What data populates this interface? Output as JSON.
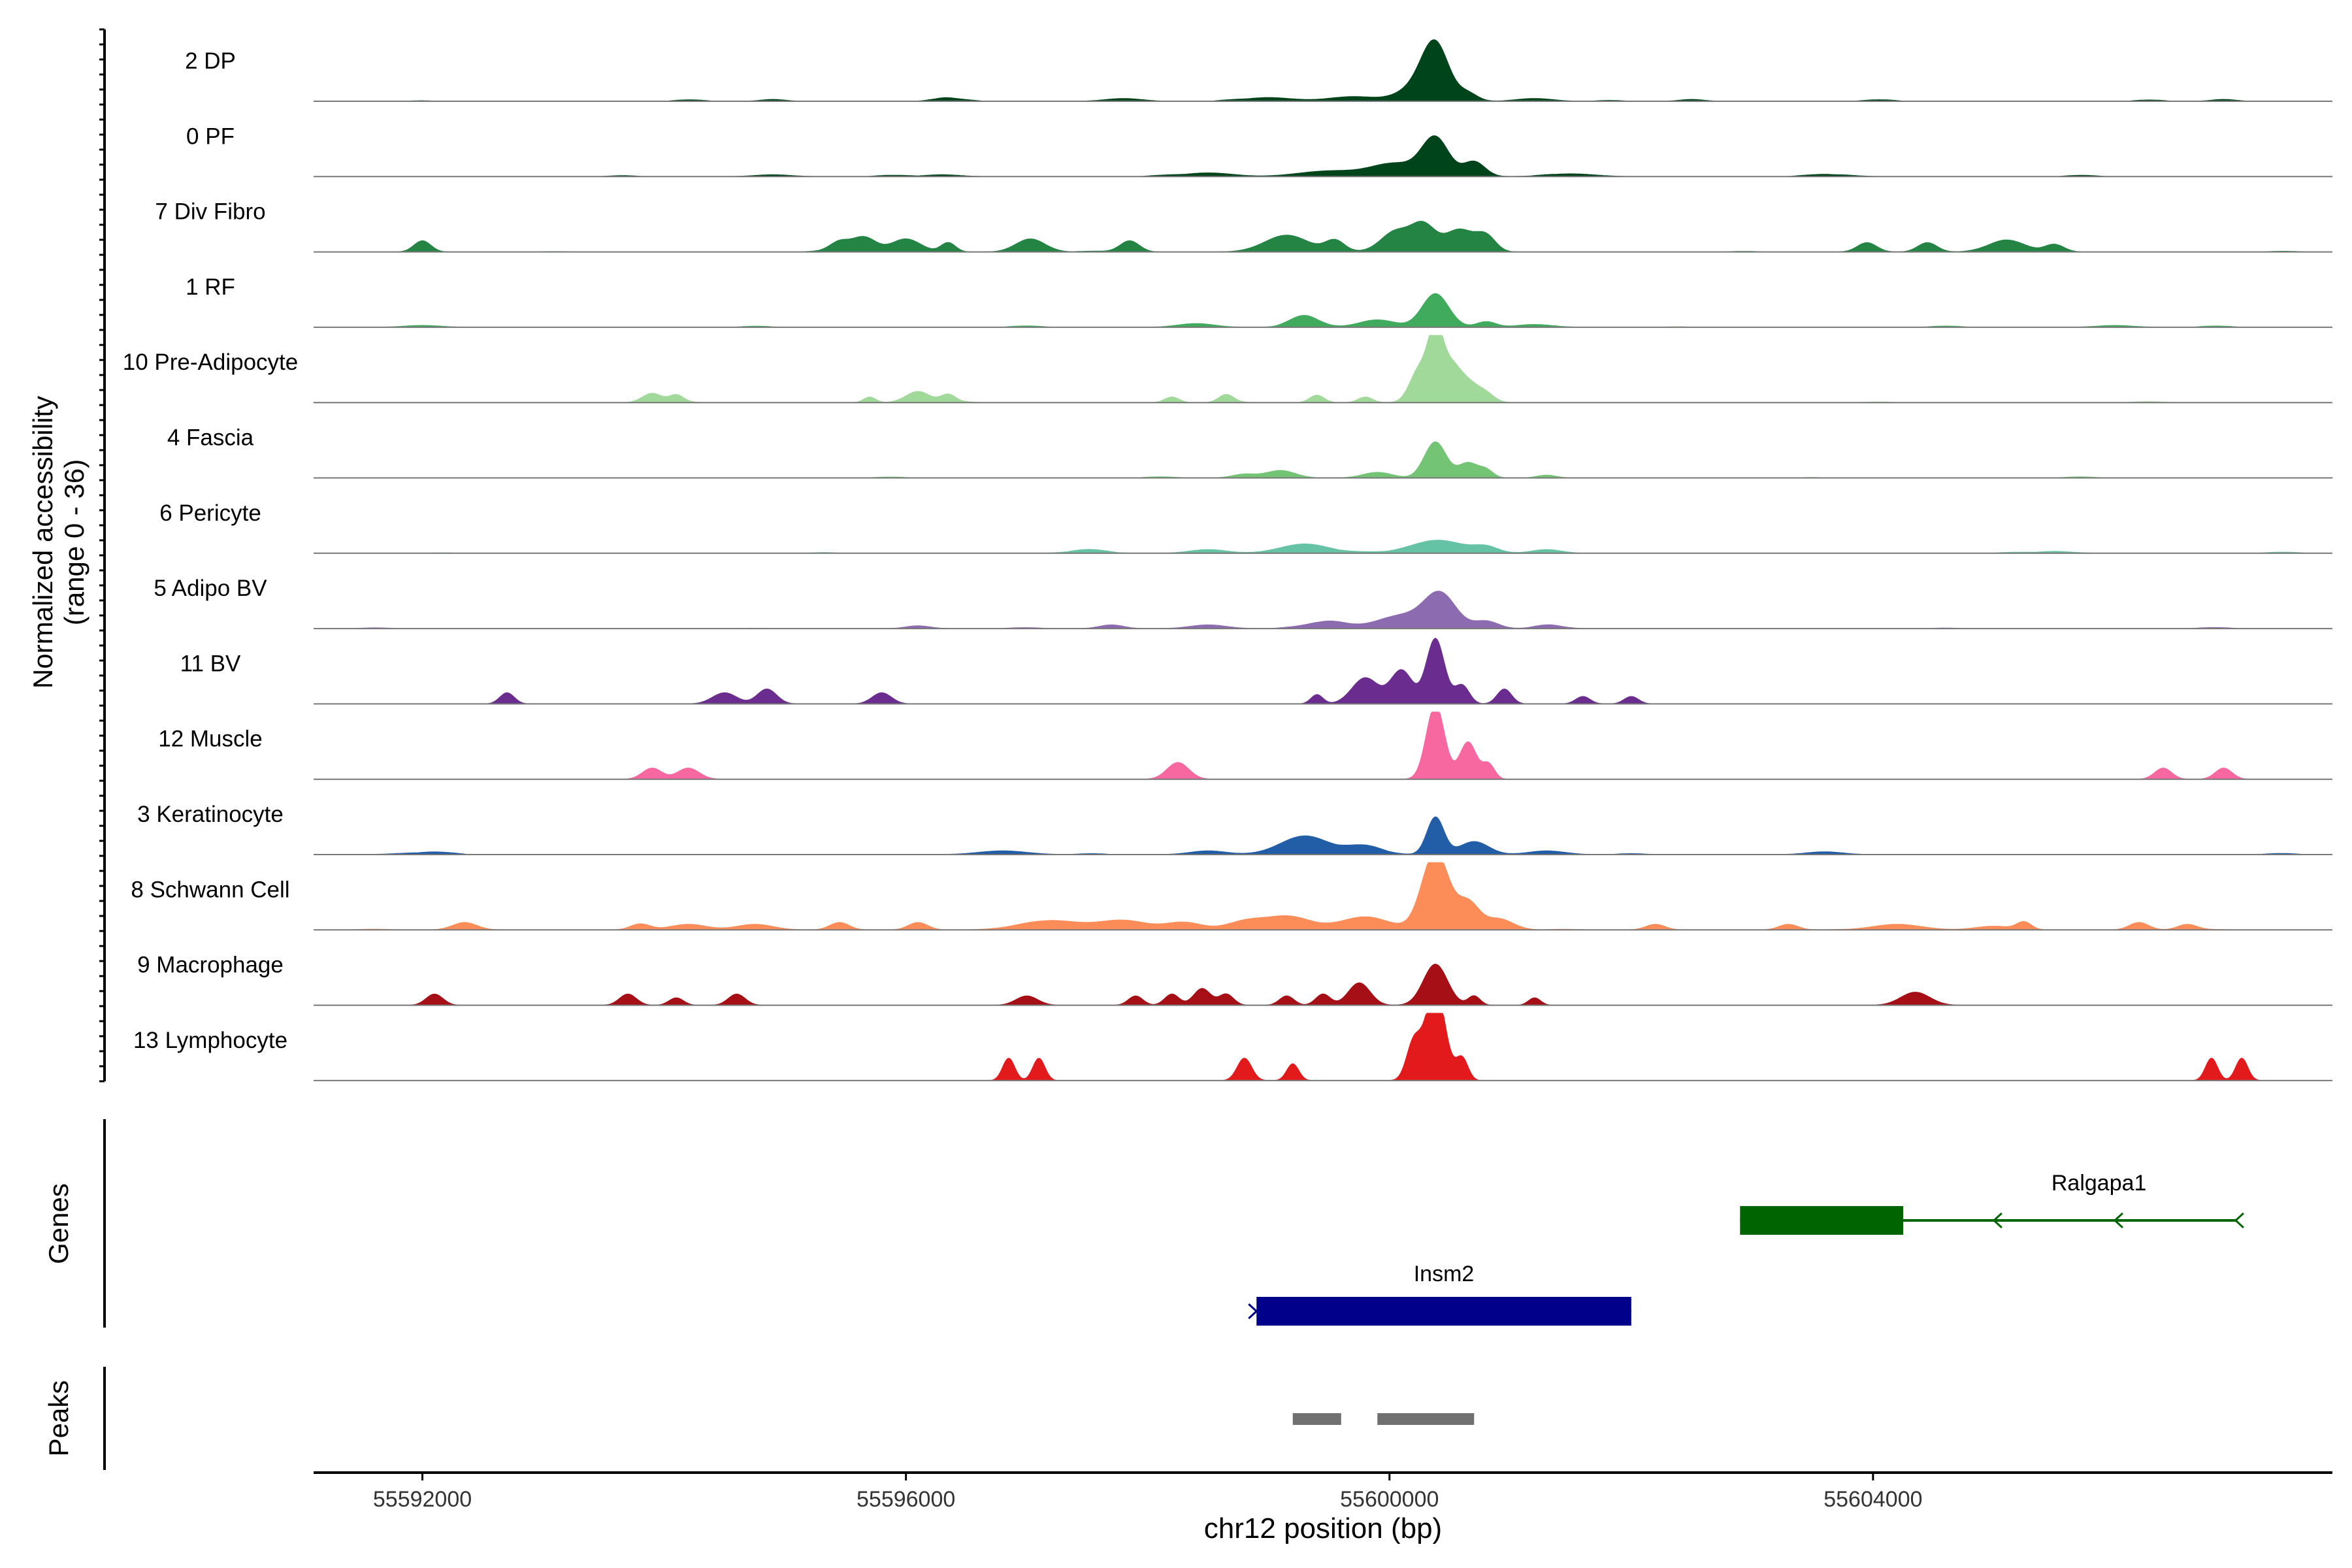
{
  "chart_data": {
    "type": "area",
    "x_axis": {
      "label": "chr12 position (bp)",
      "range": [
        55591100,
        55607800
      ],
      "ticks": [
        55592000,
        55596000,
        55600000,
        55604000
      ],
      "tick_labels": [
        "55592000",
        "55596000",
        "55600000",
        "55604000"
      ]
    },
    "y_axis": {
      "label_line1": "Normalized accessibility",
      "label_line2": "(range 0 - 36)",
      "range": [
        0,
        36
      ]
    },
    "tracks": [
      {
        "name": "2 DP",
        "color": "#00441b",
        "noise": 0.35,
        "peaks": [
          [
            55600380,
            110,
            27
          ],
          [
            55600250,
            160,
            8
          ],
          [
            55600650,
            80,
            4
          ],
          [
            55599700,
            200,
            2.5
          ],
          [
            55599000,
            200,
            2
          ],
          [
            55601200,
            150,
            1.5
          ],
          [
            55597800,
            150,
            1.5
          ],
          [
            55596300,
            100,
            1.5
          ],
          [
            55594900,
            100,
            1
          ],
          [
            55602500,
            100,
            1
          ],
          [
            55606900,
            100,
            1
          ]
        ]
      },
      {
        "name": "0 PF",
        "color": "#00441b",
        "noise": 0.3,
        "peaks": [
          [
            55600380,
            110,
            20
          ],
          [
            55600050,
            200,
            7
          ],
          [
            55600700,
            90,
            8
          ],
          [
            55599500,
            250,
            3
          ],
          [
            55598500,
            200,
            2
          ],
          [
            55601500,
            200,
            1.5
          ],
          [
            55596300,
            150,
            1
          ],
          [
            55594900,
            150,
            1
          ],
          [
            55603700,
            150,
            1
          ]
        ]
      },
      {
        "name": "7 Div Fibro",
        "color": "#238443",
        "noise": 0.2,
        "peaks": [
          [
            55592000,
            70,
            6
          ],
          [
            55595650,
            100,
            8
          ],
          [
            55595450,
            80,
            5
          ],
          [
            55596000,
            120,
            7
          ],
          [
            55596350,
            60,
            5
          ],
          [
            55597030,
            120,
            7
          ],
          [
            55597850,
            80,
            6
          ],
          [
            55599150,
            180,
            9
          ],
          [
            55599550,
            80,
            6
          ],
          [
            55600050,
            120,
            11
          ],
          [
            55600280,
            100,
            14
          ],
          [
            55600580,
            120,
            12
          ],
          [
            55600800,
            80,
            8
          ],
          [
            55603950,
            80,
            5
          ],
          [
            55604450,
            80,
            5
          ],
          [
            55605100,
            150,
            6
          ],
          [
            55605500,
            80,
            4
          ]
        ]
      },
      {
        "name": "1 RF",
        "color": "#41ab5d",
        "noise": 0.3,
        "peaks": [
          [
            55600380,
            110,
            18
          ],
          [
            55599300,
            120,
            6
          ],
          [
            55599900,
            150,
            4
          ],
          [
            55600800,
            80,
            3
          ],
          [
            55598400,
            150,
            2
          ],
          [
            55601200,
            150,
            1.5
          ],
          [
            55592000,
            150,
            1
          ],
          [
            55606000,
            150,
            1
          ]
        ]
      },
      {
        "name": "10 Pre-Adipocyte",
        "color": "#a1d99b",
        "noise": 0.2,
        "peaks": [
          [
            55600380,
            60,
            33
          ],
          [
            55600250,
            80,
            18
          ],
          [
            55600500,
            80,
            18
          ],
          [
            55600650,
            90,
            10
          ],
          [
            55600800,
            70,
            4
          ],
          [
            55593900,
            80,
            5
          ],
          [
            55594100,
            60,
            4
          ],
          [
            55595700,
            50,
            3
          ],
          [
            55596100,
            100,
            6
          ],
          [
            55596350,
            60,
            4
          ],
          [
            55598200,
            60,
            3
          ],
          [
            55598650,
            60,
            4
          ],
          [
            55599400,
            60,
            4
          ],
          [
            55599800,
            60,
            3
          ]
        ]
      },
      {
        "name": "4 Fascia",
        "color": "#74c476",
        "noise": 0.25,
        "peaks": [
          [
            55600380,
            90,
            19
          ],
          [
            55600650,
            80,
            8
          ],
          [
            55600800,
            60,
            4
          ],
          [
            55599100,
            120,
            4
          ],
          [
            55599900,
            120,
            3
          ],
          [
            55598800,
            100,
            2
          ],
          [
            55601300,
            80,
            1.5
          ]
        ]
      },
      {
        "name": "6 Pericyte",
        "color": "#66c2a4",
        "noise": 0.25,
        "peaks": [
          [
            55599300,
            200,
            5
          ],
          [
            55600400,
            220,
            7
          ],
          [
            55600800,
            100,
            3
          ],
          [
            55598500,
            150,
            2
          ],
          [
            55601300,
            120,
            2
          ],
          [
            55597500,
            150,
            1.5
          ],
          [
            55605500,
            150,
            1
          ]
        ]
      },
      {
        "name": "5 Adipo BV",
        "color": "#8c6bb1",
        "noise": 0.25,
        "peaks": [
          [
            55600420,
            130,
            18
          ],
          [
            55600100,
            200,
            7
          ],
          [
            55600800,
            100,
            4
          ],
          [
            55599500,
            150,
            4
          ],
          [
            55598500,
            150,
            2
          ],
          [
            55597700,
            100,
            2
          ],
          [
            55601300,
            100,
            2
          ],
          [
            55596100,
            100,
            1.5
          ]
        ]
      },
      {
        "name": "11 BV",
        "color": "#6a2c8f",
        "noise": 0.0,
        "peaks": [
          [
            55600380,
            75,
            35
          ],
          [
            55600100,
            90,
            18
          ],
          [
            55599800,
            110,
            14
          ],
          [
            55600600,
            60,
            10
          ],
          [
            55600950,
            60,
            8
          ],
          [
            55599400,
            50,
            5
          ],
          [
            55592700,
            60,
            6
          ],
          [
            55594500,
            100,
            6
          ],
          [
            55594850,
            80,
            8
          ],
          [
            55595800,
            80,
            6
          ],
          [
            55601600,
            60,
            4
          ],
          [
            55602000,
            60,
            4
          ]
        ]
      },
      {
        "name": "12 Muscle",
        "color": "#f768a1",
        "noise": 0.0,
        "peaks": [
          [
            55600380,
            75,
            40
          ],
          [
            55600650,
            70,
            20
          ],
          [
            55600820,
            50,
            8
          ],
          [
            55593900,
            80,
            6
          ],
          [
            55594200,
            90,
            6
          ],
          [
            55598250,
            90,
            9
          ],
          [
            55606400,
            70,
            6
          ],
          [
            55606900,
            70,
            6
          ]
        ]
      },
      {
        "name": "3 Keratinocyte",
        "color": "#225ea8",
        "noise": 0.3,
        "peaks": [
          [
            55600380,
            70,
            20
          ],
          [
            55599300,
            200,
            10
          ],
          [
            55599800,
            150,
            4
          ],
          [
            55600700,
            120,
            7
          ],
          [
            55601300,
            150,
            2
          ],
          [
            55598500,
            150,
            2
          ],
          [
            55596800,
            200,
            2
          ],
          [
            55603600,
            150,
            1.5
          ],
          [
            55592000,
            200,
            1
          ]
        ]
      },
      {
        "name": "8 Schwann Cell",
        "color": "#fc8d59",
        "noise": 0.15,
        "peaks": [
          [
            55600380,
            110,
            42
          ],
          [
            55600650,
            90,
            14
          ],
          [
            55600900,
            120,
            6
          ],
          [
            55599150,
            200,
            7
          ],
          [
            55599800,
            200,
            7
          ],
          [
            55598800,
            150,
            4
          ],
          [
            55597200,
            250,
            5
          ],
          [
            55597800,
            200,
            5
          ],
          [
            55598300,
            150,
            4
          ],
          [
            55596100,
            80,
            4
          ],
          [
            55595450,
            80,
            4
          ],
          [
            55594200,
            150,
            3
          ],
          [
            55594750,
            150,
            3
          ],
          [
            55592350,
            100,
            4
          ],
          [
            55593800,
            80,
            3
          ],
          [
            55602200,
            80,
            3
          ],
          [
            55603300,
            80,
            3
          ],
          [
            55604200,
            200,
            3
          ],
          [
            55605000,
            150,
            2
          ],
          [
            55605250,
            60,
            4
          ],
          [
            55606200,
            80,
            4
          ],
          [
            55606600,
            80,
            3
          ]
        ]
      },
      {
        "name": "9 Macrophage",
        "color": "#a50f15",
        "noise": 0.0,
        "peaks": [
          [
            55600380,
            100,
            22
          ],
          [
            55599750,
            90,
            12
          ],
          [
            55599450,
            60,
            6
          ],
          [
            55600700,
            50,
            5
          ],
          [
            55601200,
            50,
            4
          ],
          [
            55599150,
            60,
            5
          ],
          [
            55598650,
            60,
            6
          ],
          [
            55598450,
            70,
            9
          ],
          [
            55598200,
            60,
            6
          ],
          [
            55597900,
            60,
            5
          ],
          [
            55597000,
            90,
            5
          ],
          [
            55592100,
            70,
            6
          ],
          [
            55594600,
            70,
            6
          ],
          [
            55593700,
            70,
            6
          ],
          [
            55594100,
            60,
            4
          ],
          [
            55604350,
            120,
            7
          ]
        ]
      },
      {
        "name": "13 Lymphocyte",
        "color": "#e31a1c",
        "noise": 0.0,
        "peaks": [
          [
            55600380,
            80,
            50
          ],
          [
            55600200,
            60,
            20
          ],
          [
            55600600,
            50,
            12
          ],
          [
            55596850,
            50,
            12
          ],
          [
            55597100,
            50,
            12
          ],
          [
            55598800,
            60,
            12
          ],
          [
            55599200,
            50,
            9
          ],
          [
            55606800,
            50,
            12
          ],
          [
            55607050,
            50,
            12
          ]
        ]
      }
    ],
    "genes": [
      {
        "name": "Ralgapa1",
        "color": "#006400",
        "start": 55602900,
        "end": 55607000,
        "thick_start": 55602900,
        "thick_end": 55604250,
        "strand": "-",
        "arrows": [
          55605000,
          55606000,
          55607000
        ]
      },
      {
        "name": "Insm2",
        "color": "#00008b",
        "start": 55598900,
        "end": 55602000,
        "thick_start": 55598900,
        "thick_end": 55602000,
        "strand": "+",
        "arrows": [
          55598900
        ]
      }
    ],
    "peaks": [
      {
        "start": 55599200,
        "end": 55599600
      },
      {
        "start": 55599900,
        "end": 55600700
      }
    ],
    "panel_labels": {
      "genes": "Genes",
      "peaks": "Peaks"
    }
  }
}
